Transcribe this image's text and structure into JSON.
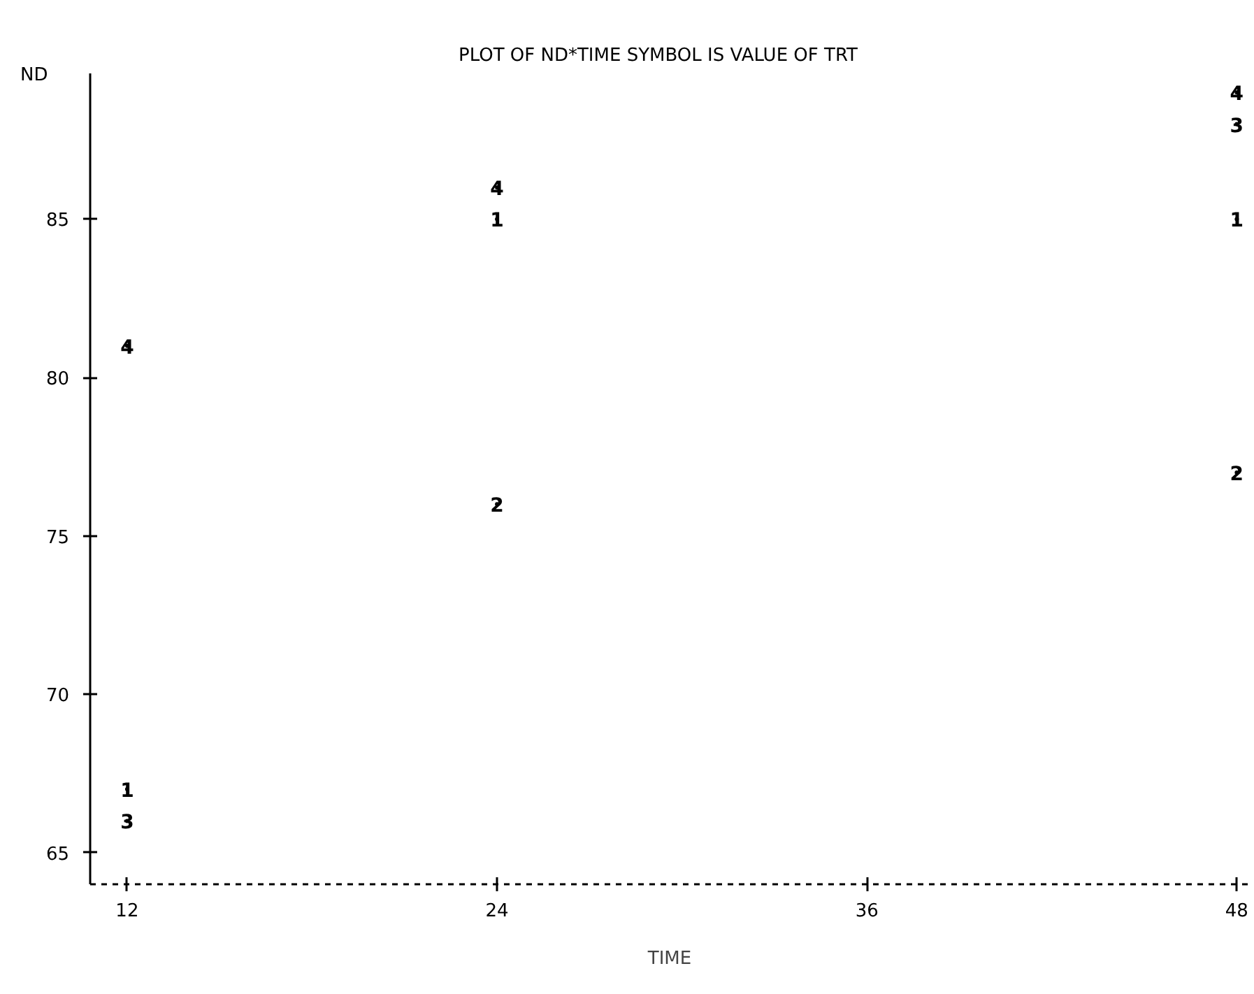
{
  "chart_data": {
    "type": "scatter",
    "title": "PLOT OF ND*TIME     SYMBOL IS VALUE OF TRT",
    "xlabel": "TIME",
    "ylabel": "ND",
    "xlim": [
      10.8,
      48.4
    ],
    "ylim": [
      64,
      89.6
    ],
    "xticks": [
      12,
      24,
      36,
      48
    ],
    "yticks": [
      65,
      70,
      75,
      80,
      85
    ],
    "series": [
      {
        "name": "1",
        "color": "#000000",
        "x": [
          12,
          24,
          48
        ],
        "values": [
          67,
          85,
          85
        ]
      },
      {
        "name": "2",
        "color": "#000000",
        "x": [
          24,
          48
        ],
        "values": [
          76,
          77
        ]
      },
      {
        "name": "3",
        "color": "#000000",
        "x": [
          12,
          48
        ],
        "values": [
          66,
          88
        ]
      },
      {
        "name": "4",
        "color": "#000000",
        "x": [
          12,
          24,
          48
        ],
        "values": [
          81,
          86,
          89
        ]
      }
    ]
  }
}
